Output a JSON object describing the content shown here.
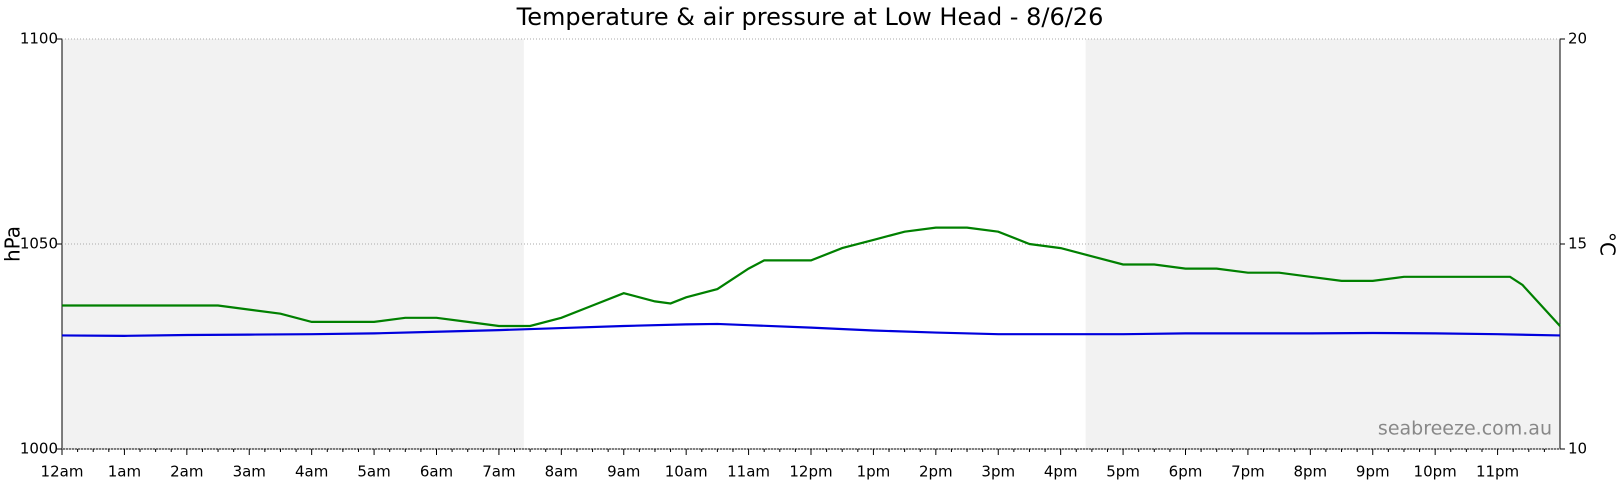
{
  "chart_data": {
    "type": "line",
    "title": "Temperature & air pressure at Low Head - 8/6/26",
    "ylabel": "hPa",
    "y2label": "°C",
    "watermark": "seabreeze.com.au",
    "xlim": [
      0,
      24
    ],
    "xticks": [
      {
        "value": 0,
        "label": "12am"
      },
      {
        "value": 1,
        "label": "1am"
      },
      {
        "value": 2,
        "label": "2am"
      },
      {
        "value": 3,
        "label": "3am"
      },
      {
        "value": 4,
        "label": "4am"
      },
      {
        "value": 5,
        "label": "5am"
      },
      {
        "value": 6,
        "label": "6am"
      },
      {
        "value": 7,
        "label": "7am"
      },
      {
        "value": 8,
        "label": "8am"
      },
      {
        "value": 9,
        "label": "9am"
      },
      {
        "value": 10,
        "label": "10am"
      },
      {
        "value": 11,
        "label": "11am"
      },
      {
        "value": 12,
        "label": "12pm"
      },
      {
        "value": 13,
        "label": "1pm"
      },
      {
        "value": 14,
        "label": "2pm"
      },
      {
        "value": 15,
        "label": "3pm"
      },
      {
        "value": 16,
        "label": "4pm"
      },
      {
        "value": 17,
        "label": "5pm"
      },
      {
        "value": 18,
        "label": "6pm"
      },
      {
        "value": 19,
        "label": "7pm"
      },
      {
        "value": 20,
        "label": "8pm"
      },
      {
        "value": 21,
        "label": "9pm"
      },
      {
        "value": 22,
        "label": "10pm"
      },
      {
        "value": 23,
        "label": "11pm"
      }
    ],
    "ylim": [
      1000,
      1100
    ],
    "yticks": [
      1000,
      1050,
      1100
    ],
    "y2lim": [
      10,
      20
    ],
    "y2ticks": [
      10,
      15,
      20
    ],
    "grid": true,
    "ylabel_color": "#0000ee",
    "y2label_color": "#008000",
    "night": [
      [
        0,
        7.4
      ],
      [
        16.4,
        24
      ]
    ],
    "series": [
      {
        "name": "Pressure",
        "color": "#0000dd",
        "x": [
          0,
          1,
          2,
          3,
          4,
          5,
          6,
          7,
          8,
          9,
          10,
          10.5,
          11,
          12,
          13,
          14,
          15,
          16,
          17,
          18,
          19,
          20,
          21,
          22,
          23,
          24
        ],
        "values": [
          1027.7,
          1027.6,
          1027.8,
          1027.9,
          1028.0,
          1028.2,
          1028.6,
          1029.0,
          1029.5,
          1030.0,
          1030.4,
          1030.5,
          1030.2,
          1029.6,
          1028.9,
          1028.4,
          1028.0,
          1028.0,
          1028.0,
          1028.2,
          1028.2,
          1028.2,
          1028.3,
          1028.2,
          1028.0,
          1027.7
        ]
      },
      {
        "name": "Temperature",
        "color": "#008000",
        "axis": "y2",
        "x": [
          0,
          2.5,
          3,
          3.5,
          4,
          4.5,
          5,
          5.5,
          6,
          6.5,
          7,
          7.5,
          8,
          8.5,
          9,
          9.5,
          9.75,
          10,
          10.5,
          11,
          11.25,
          12,
          12.5,
          13,
          13.5,
          14,
          14.5,
          15,
          15.5,
          16,
          16.5,
          17,
          17.5,
          18,
          18.5,
          19,
          19.5,
          20,
          20.5,
          21,
          21.5,
          22,
          22.5,
          23,
          23.2,
          23.4,
          23.7,
          24
        ],
        "values": [
          13.5,
          13.5,
          13.4,
          13.3,
          13.1,
          13.1,
          13.1,
          13.2,
          13.2,
          13.1,
          13.0,
          13.0,
          13.2,
          13.5,
          13.8,
          13.6,
          13.55,
          13.7,
          13.9,
          14.4,
          14.6,
          14.6,
          14.9,
          15.1,
          15.3,
          15.4,
          15.4,
          15.3,
          15.0,
          14.9,
          14.7,
          14.5,
          14.5,
          14.4,
          14.4,
          14.3,
          14.3,
          14.2,
          14.1,
          14.1,
          14.2,
          14.2,
          14.2,
          14.2,
          14.2,
          14.0,
          13.5,
          13.0
        ]
      }
    ]
  }
}
